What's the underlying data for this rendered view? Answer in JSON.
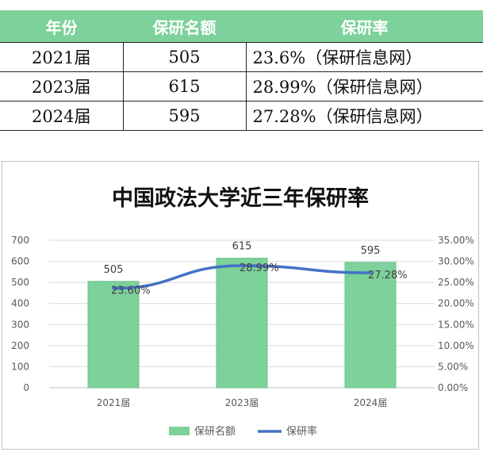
{
  "table": {
    "headers": [
      "年份",
      "保研名额",
      "保研率"
    ],
    "rows": [
      {
        "year": "2021届",
        "quota": "505",
        "rate": "23.6%（保研信息网）"
      },
      {
        "year": "2023届",
        "quota": "615",
        "rate": "28.99%（保研信息网）"
      },
      {
        "year": "2024届",
        "quota": "595",
        "rate": "27.28%（保研信息网）"
      }
    ]
  },
  "chart_data": {
    "type": "bar",
    "title": "中国政法大学近三年保研率",
    "categories": [
      "2021届",
      "2023届",
      "2024届"
    ],
    "series": [
      {
        "name": "保研名额",
        "type": "bar",
        "axis": "left",
        "values": [
          505,
          615,
          595
        ],
        "labels": [
          "505",
          "615",
          "595"
        ],
        "color": "#7dd19a"
      },
      {
        "name": "保研率",
        "type": "line",
        "axis": "right",
        "values": [
          23.6,
          28.99,
          27.28
        ],
        "labels": [
          "23.60%",
          "28.99%",
          "27.28%"
        ],
        "color": "#4472c4"
      }
    ],
    "ylim": [
      0,
      700
    ],
    "yticks": [
      "0",
      "100",
      "200",
      "300",
      "400",
      "500",
      "600",
      "700"
    ],
    "y2lim": [
      0,
      35
    ],
    "y2ticks": [
      "0.00%",
      "5.00%",
      "10.00%",
      "15.00%",
      "20.00%",
      "25.00%",
      "30.00%",
      "35.00%"
    ],
    "legend": "bottom",
    "grid": true
  }
}
